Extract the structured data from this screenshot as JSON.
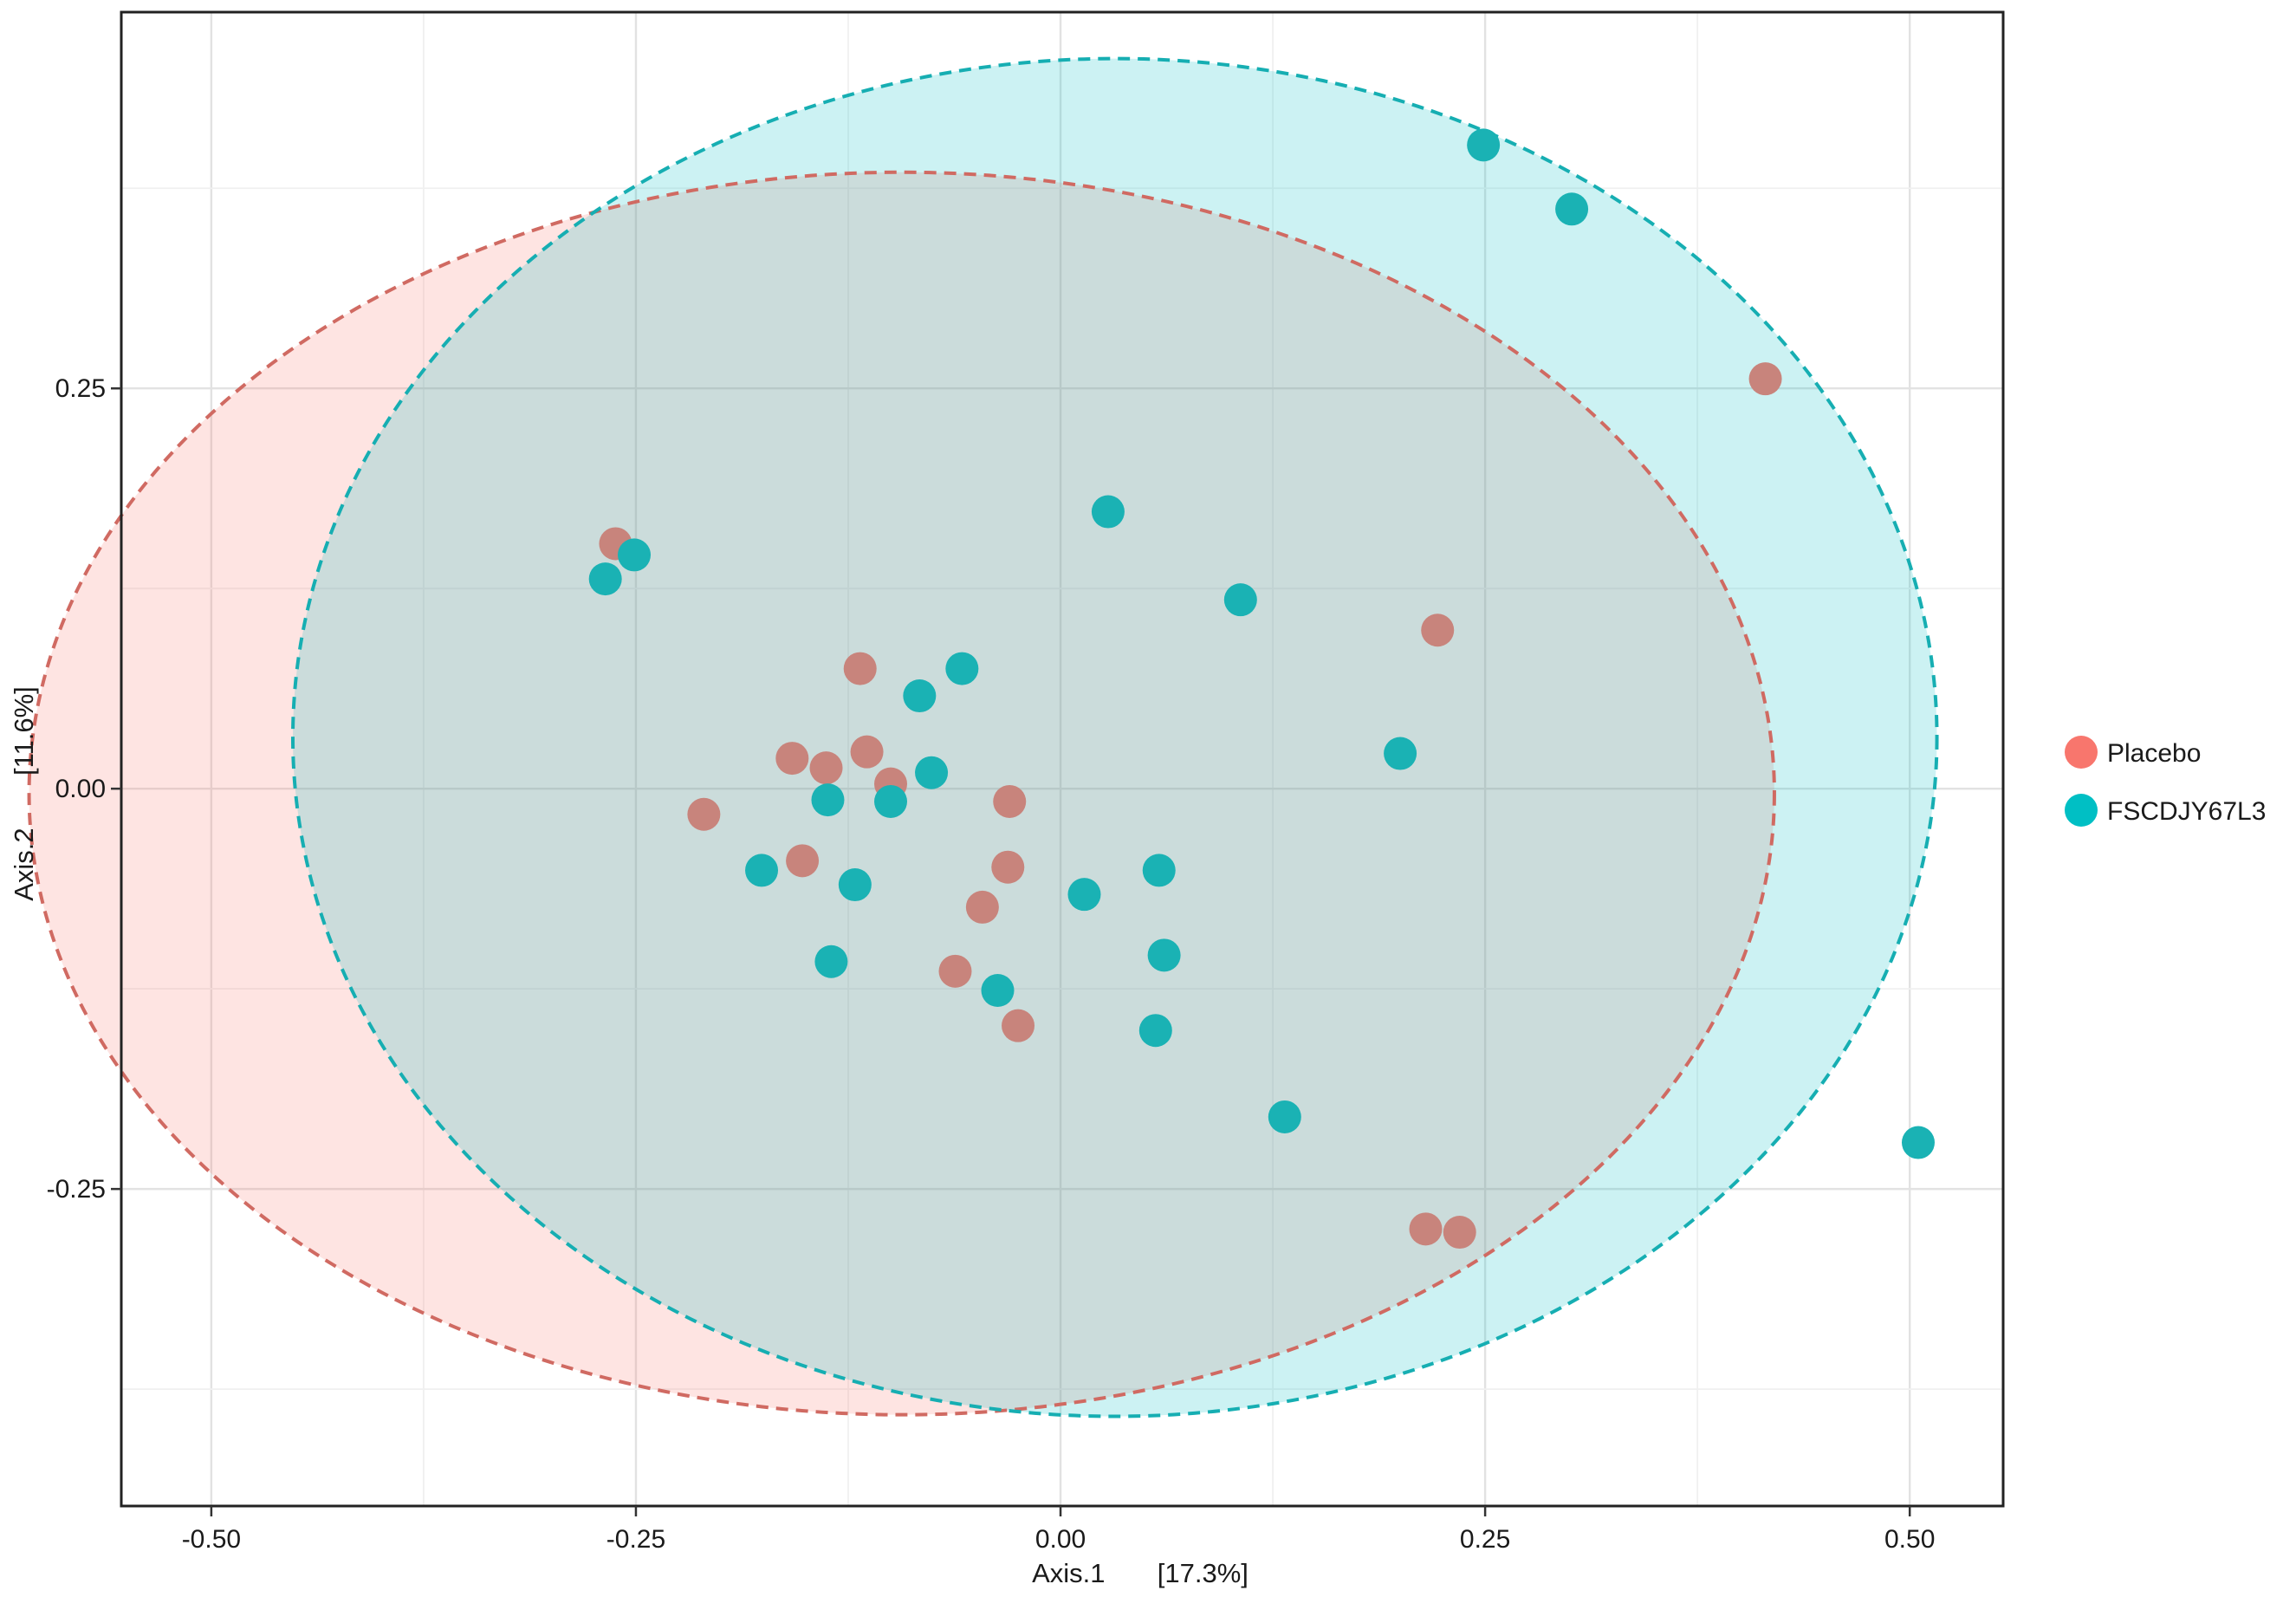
{
  "chart_data": {
    "type": "scatter",
    "title": "",
    "xlabel": "Axis.1       [17.3%]",
    "ylabel": "Axis.2       [11.6%]",
    "xlim": [
      -0.553,
      0.555
    ],
    "ylim": [
      -0.448,
      0.485
    ],
    "x_ticks": [
      -0.5,
      -0.25,
      0.0,
      0.25,
      0.5
    ],
    "x_tick_labels": [
      "-0.50",
      "-0.25",
      "0.00",
      "0.25",
      "0.50"
    ],
    "y_ticks": [
      -0.25,
      0.0,
      0.25
    ],
    "y_tick_labels": [
      "-0.25",
      "0.00",
      "0.25"
    ],
    "grid": true,
    "legend_position": "right",
    "series": [
      {
        "name": "Placebo",
        "color": "#F8766D",
        "point_color": "#C8847C",
        "ellipse": {
          "cx": -0.0935,
          "cy": -0.003,
          "rx": 0.5138,
          "ry": 0.388
        },
        "points": [
          [
            -0.262,
            0.153
          ],
          [
            -0.118,
            0.075
          ],
          [
            -0.158,
            0.019
          ],
          [
            -0.138,
            0.013
          ],
          [
            -0.114,
            0.023
          ],
          [
            -0.1,
            0.003
          ],
          [
            -0.21,
            -0.016
          ],
          [
            -0.03,
            -0.008
          ],
          [
            -0.152,
            -0.045
          ],
          [
            -0.031,
            -0.049
          ],
          [
            -0.046,
            -0.074
          ],
          [
            -0.062,
            -0.114
          ],
          [
            -0.025,
            -0.148
          ],
          [
            0.222,
            0.099
          ],
          [
            0.415,
            0.256
          ],
          [
            0.215,
            -0.275
          ],
          [
            0.235,
            -0.277
          ]
        ]
      },
      {
        "name": "FSCDJY67L3",
        "color": "#00BFC4",
        "point_color": "#1AB2B4",
        "ellipse": {
          "cx": 0.032,
          "cy": 0.032,
          "rx": 0.484,
          "ry": 0.424
        },
        "points": [
          [
            0.249,
            0.402
          ],
          [
            0.301,
            0.362
          ],
          [
            -0.251,
            0.146
          ],
          [
            -0.268,
            0.131
          ],
          [
            0.028,
            0.173
          ],
          [
            0.106,
            0.118
          ],
          [
            -0.058,
            0.075
          ],
          [
            -0.083,
            0.058
          ],
          [
            -0.076,
            0.01
          ],
          [
            -0.1,
            -0.008
          ],
          [
            -0.137,
            -0.007
          ],
          [
            0.2,
            0.022
          ],
          [
            -0.176,
            -0.051
          ],
          [
            -0.121,
            -0.06
          ],
          [
            0.014,
            -0.066
          ],
          [
            0.058,
            -0.051
          ],
          [
            -0.135,
            -0.108
          ],
          [
            0.061,
            -0.104
          ],
          [
            -0.037,
            -0.126
          ],
          [
            0.056,
            -0.151
          ],
          [
            0.132,
            -0.205
          ],
          [
            0.505,
            -0.221
          ]
        ]
      }
    ]
  }
}
